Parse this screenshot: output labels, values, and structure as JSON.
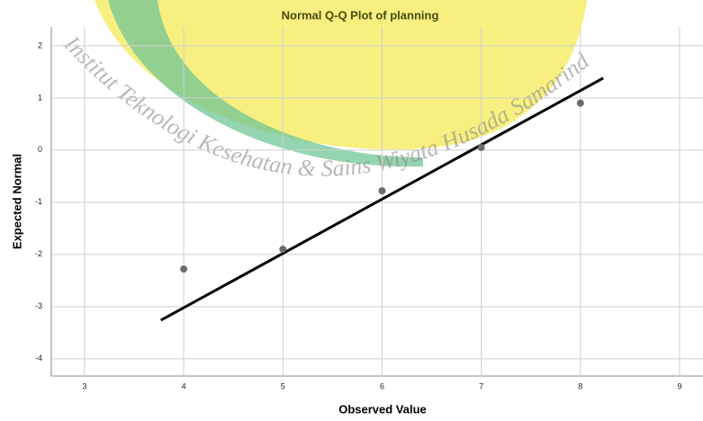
{
  "chart_data": {
    "type": "scatter",
    "title": "Normal Q-Q Plot of planning",
    "x_label": "Observed Value",
    "y_label": "Expected Normal",
    "x": [
      4,
      5,
      6,
      7,
      8
    ],
    "values": [
      -2.28,
      -1.9,
      -0.78,
      0.05,
      0.9
    ],
    "color": "#6b6b6b",
    "reference_line": {
      "x": [
        3.77,
        8.23
      ],
      "y": [
        -3.26,
        1.38
      ],
      "color": "#000000"
    },
    "xlim": [
      2.665,
      9.236
    ],
    "xticks": [
      3,
      4,
      5,
      6,
      7,
      8,
      9
    ],
    "ylim": [
      -4.33,
      2.36
    ],
    "yticks": [
      -4,
      -3,
      -2,
      -1,
      0,
      1,
      2
    ],
    "grid": true,
    "annotations": [
      "Institut Teknologi Kesehatan & Sains Wiyata Husada Samarinda"
    ]
  }
}
